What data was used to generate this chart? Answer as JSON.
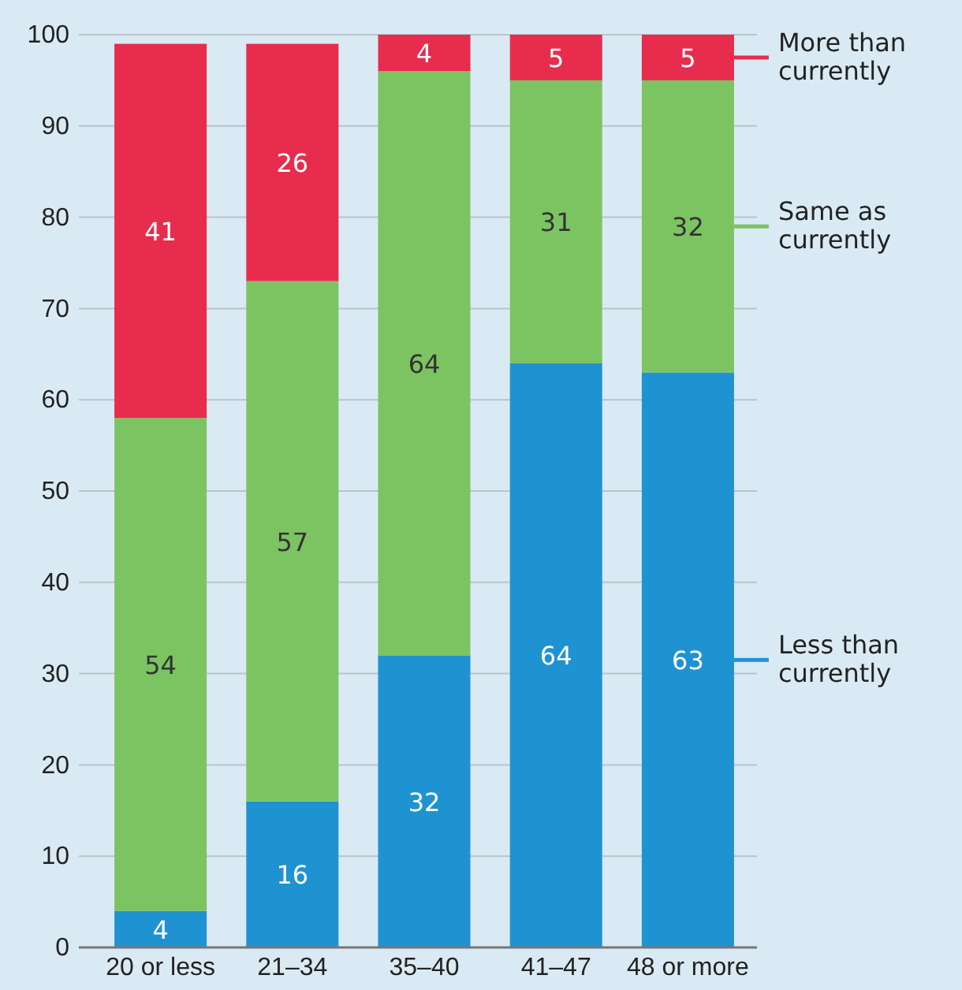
{
  "chart_data": {
    "type": "bar",
    "stacked": true,
    "categories": [
      "20 or less",
      "21–34",
      "35–40",
      "41–47",
      "48 or more"
    ],
    "series": [
      {
        "name": "Less than currently",
        "color": "#1f93d1",
        "values": [
          4,
          16,
          32,
          64,
          63
        ]
      },
      {
        "name": "Same as currently",
        "color": "#7cc462",
        "values": [
          54,
          57,
          64,
          31,
          32
        ]
      },
      {
        "name": "More than currently",
        "color": "#e82c4e",
        "values": [
          41,
          26,
          4,
          5,
          5
        ]
      }
    ],
    "ylim": [
      0,
      100
    ],
    "yticks": [
      0,
      10,
      20,
      30,
      40,
      50,
      60,
      70,
      80,
      90,
      100
    ],
    "grid": "y",
    "legend": "right",
    "data_labels": true
  }
}
